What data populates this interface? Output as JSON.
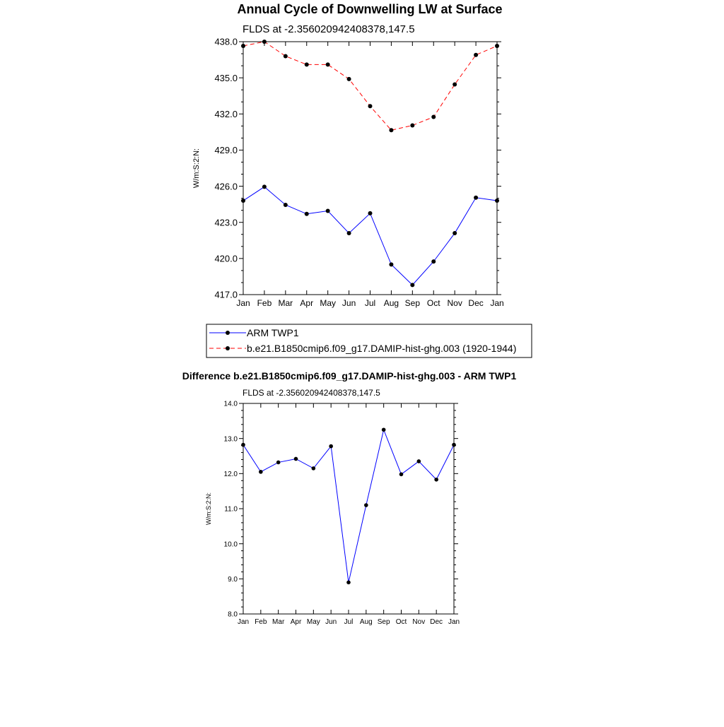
{
  "chart_data": [
    {
      "type": "line",
      "title": "Annual Cycle of Downwelling LW at Surface",
      "subtitle": "FLDS at -2.356020942408378,147.5",
      "ylabel": "W/m:S:2:N:",
      "xlabel": "",
      "ylim": [
        417.0,
        438.0
      ],
      "yticks": [
        "417.0",
        "420.0",
        "423.0",
        "426.0",
        "429.0",
        "432.0",
        "435.0",
        "438.0"
      ],
      "categories": [
        "Jan",
        "Feb",
        "Mar",
        "Apr",
        "May",
        "Jun",
        "Jul",
        "Aug",
        "Sep",
        "Oct",
        "Nov",
        "Dec",
        "Jan"
      ],
      "series": [
        {
          "name": "ARM TWP1",
          "color": "#0000ff",
          "dash": "solid",
          "values": [
            424.8,
            425.95,
            424.45,
            423.7,
            423.95,
            422.1,
            423.75,
            419.5,
            417.8,
            419.75,
            422.1,
            425.05,
            424.8
          ]
        },
        {
          "name": "b.e21.B1850cmip6.f09_g17.DAMIP-hist-ghg.003 (1920-1944)",
          "color": "#ff0000",
          "dash": "dashed",
          "values": [
            437.65,
            438.0,
            436.8,
            436.1,
            436.1,
            434.9,
            432.65,
            430.65,
            431.05,
            431.75,
            434.45,
            436.9,
            437.65
          ]
        }
      ],
      "legend": [
        "ARM TWP1",
        "b.e21.B1850cmip6.f09_g17.DAMIP-hist-ghg.003 (1920-1944)"
      ]
    },
    {
      "type": "line",
      "title": "Difference b.e21.B1850cmip6.f09_g17.DAMIP-hist-ghg.003 - ARM TWP1",
      "subtitle": "FLDS at -2.356020942408378,147.5",
      "ylabel": "W/m:S:2:N:",
      "xlabel": "",
      "ylim": [
        8.0,
        14.0
      ],
      "yticks": [
        "8.0",
        "9.0",
        "10.0",
        "11.0",
        "12.0",
        "13.0",
        "14.0"
      ],
      "categories": [
        "Jan",
        "Feb",
        "Mar",
        "Apr",
        "May",
        "Jun",
        "Jul",
        "Aug",
        "Sep",
        "Oct",
        "Nov",
        "Dec",
        "Jan"
      ],
      "series": [
        {
          "name": "Difference",
          "color": "#0000ff",
          "dash": "solid",
          "values": [
            12.82,
            12.05,
            12.32,
            12.42,
            12.15,
            12.78,
            8.9,
            11.1,
            13.25,
            11.98,
            12.35,
            11.83,
            12.82
          ]
        }
      ]
    }
  ]
}
